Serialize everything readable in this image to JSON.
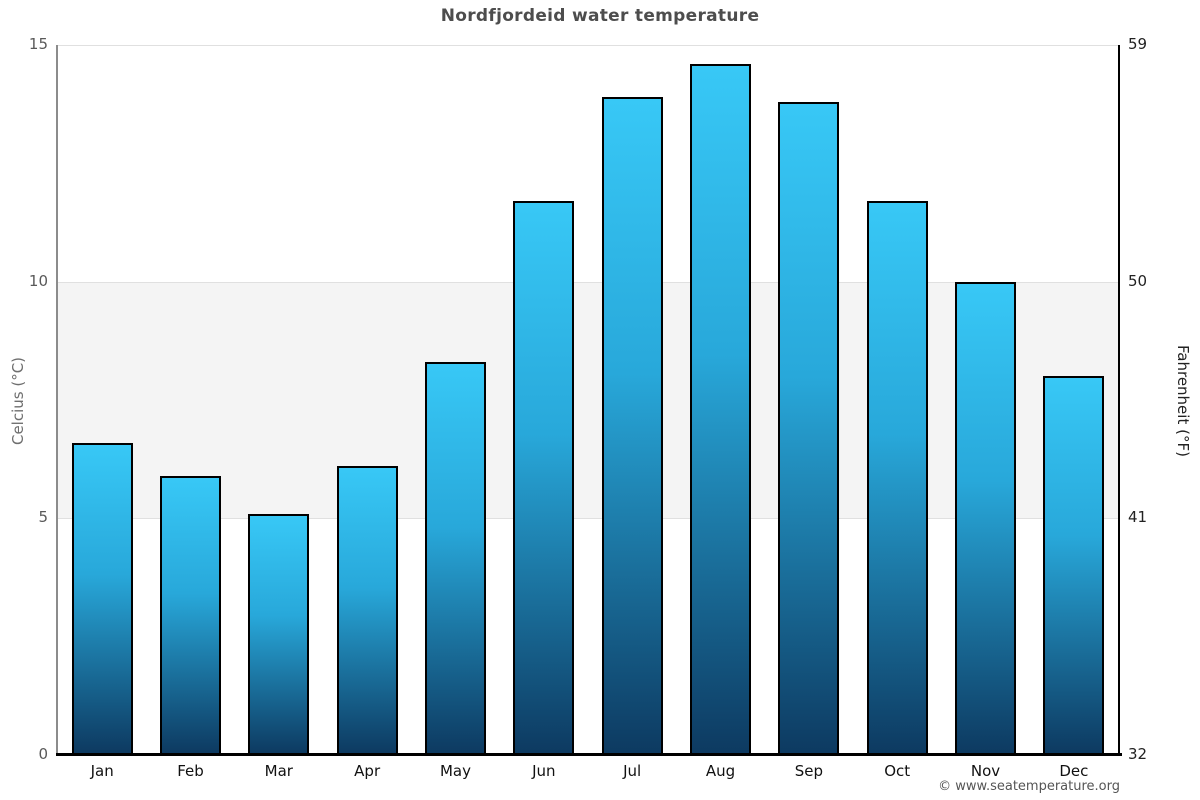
{
  "title": "Nordfjordeid water temperature",
  "footer": "© www.seatemperature.org",
  "axes": {
    "left_label": "Celcius (°C)",
    "right_label": "Fahrenheit (°F)",
    "left_ticks": [
      "15",
      "10",
      "5",
      "0"
    ],
    "right_ticks": [
      "59",
      "50",
      "41",
      "32"
    ]
  },
  "colors": {
    "bar_gradient_top": "#38c8f6",
    "bar_gradient_bottom": "#0d3a61",
    "bar_border": "#000000",
    "shaded_band": "#f4f4f4",
    "gridline": "#e0e0e0",
    "title_text": "#4d4d4d"
  },
  "chart_data": {
    "type": "bar",
    "title": "Nordfjordeid water temperature",
    "categories": [
      "Jan",
      "Feb",
      "Mar",
      "Apr",
      "May",
      "Jun",
      "Jul",
      "Aug",
      "Sep",
      "Oct",
      "Nov",
      "Dec"
    ],
    "values": [
      6.6,
      5.9,
      5.1,
      6.1,
      8.3,
      11.7,
      13.9,
      14.6,
      13.8,
      11.7,
      10.0,
      8.0
    ],
    "ylabel_left": "Celcius (°C)",
    "ylabel_right": "Fahrenheit (°F)",
    "ylim_celsius": [
      0,
      15
    ],
    "ylim_fahrenheit": [
      32,
      59
    ],
    "yticks_celsius": [
      15,
      10,
      5,
      0
    ],
    "yticks_fahrenheit": [
      59,
      50,
      41,
      32
    ],
    "shaded_band_celsius": [
      5,
      10
    ],
    "grid": true,
    "legend": false
  }
}
